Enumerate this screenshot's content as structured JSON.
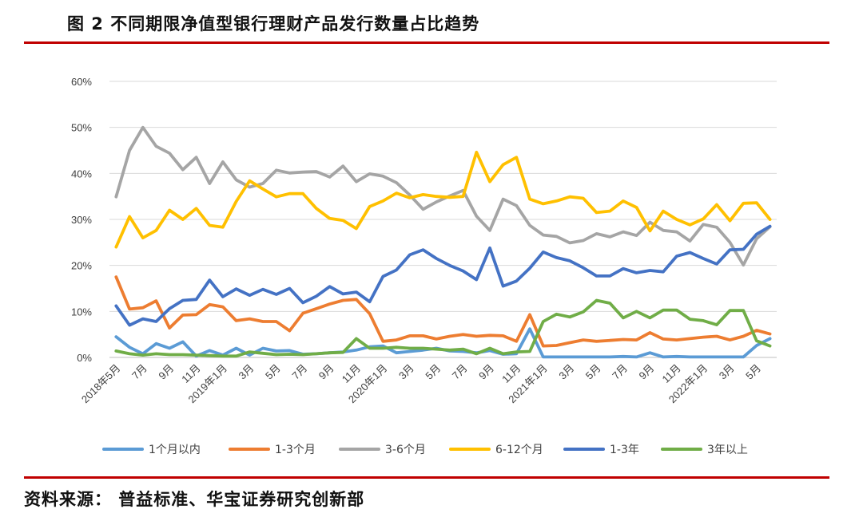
{
  "header": {
    "title": "图 2 不同期限净值型银行理财产品发行数量占比趋势"
  },
  "footer": {
    "source": "资料来源：  普益标准、华宝证券研究创新部"
  },
  "chart_data": {
    "type": "line",
    "title": "",
    "xlabel": "",
    "ylabel": "",
    "y_unit": "%",
    "ylim": [
      0,
      60
    ],
    "y_ticks": [
      "0%",
      "10%",
      "20%",
      "30%",
      "40%",
      "50%",
      "60%"
    ],
    "grid": "horizontal",
    "legend_position": "bottom",
    "x": [
      "2018-05",
      "2018-06",
      "2018-07",
      "2018-08",
      "2018-09",
      "2018-10",
      "2018-11",
      "2018-12",
      "2019-01",
      "2019-02",
      "2019-03",
      "2019-04",
      "2019-05",
      "2019-06",
      "2019-07",
      "2019-08",
      "2019-09",
      "2019-10",
      "2019-11",
      "2019-12",
      "2020-01",
      "2020-02",
      "2020-03",
      "2020-04",
      "2020-05",
      "2020-06",
      "2020-07",
      "2020-08",
      "2020-09",
      "2020-10",
      "2020-11",
      "2020-12",
      "2021-01",
      "2021-02",
      "2021-03",
      "2021-04",
      "2021-05",
      "2021-06",
      "2021-07",
      "2021-08",
      "2021-09",
      "2021-10",
      "2021-11",
      "2021-12",
      "2022-01",
      "2022-02",
      "2022-03",
      "2022-04",
      "2022-05",
      "2022-06"
    ],
    "x_tick_labels": [
      "2018年5月",
      "7月",
      "9月",
      "11月",
      "2019年1月",
      "3月",
      "5月",
      "7月",
      "9月",
      "11月",
      "2020年1月",
      "3月",
      "5月",
      "7月",
      "9月",
      "11月",
      "2021年1月",
      "3月",
      "5月",
      "7月",
      "9月",
      "11月",
      "2022年1月",
      "3月",
      "5月"
    ],
    "series": [
      {
        "name": "1个月以内",
        "color": "#5b9bd5",
        "values": [
          4.5,
          2.2,
          0.8,
          3.0,
          2.0,
          3.4,
          0.3,
          1.5,
          0.5,
          2.0,
          0.5,
          2.0,
          1.4,
          1.5,
          0.7,
          0.8,
          1.0,
          1.2,
          1.6,
          2.3,
          2.5,
          1.0,
          1.3,
          1.6,
          2.0,
          1.4,
          1.3,
          1.0,
          1.5,
          0.7,
          0.8,
          6.2,
          0.1,
          0.1,
          0.1,
          0.1,
          0.1,
          0.1,
          0.2,
          0.1,
          1.0,
          0.1,
          0.2,
          0.1,
          0.1,
          0.1,
          0.1,
          0.1,
          2.6,
          4.1
        ]
      },
      {
        "name": "1-3个月",
        "color": "#ed7d31",
        "values": [
          17.5,
          10.5,
          10.8,
          12.3,
          6.4,
          9.2,
          9.3,
          11.5,
          11.0,
          8.0,
          8.4,
          7.8,
          7.8,
          5.8,
          9.6,
          10.6,
          11.6,
          12.4,
          12.6,
          9.5,
          3.5,
          3.8,
          4.7,
          4.7,
          4.0,
          4.6,
          5.0,
          4.6,
          4.8,
          4.7,
          3.5,
          9.3,
          2.5,
          2.6,
          3.2,
          3.8,
          3.5,
          3.7,
          3.9,
          3.8,
          5.4,
          4.0,
          3.8,
          4.1,
          4.4,
          4.6,
          3.8,
          4.6,
          5.9,
          5.1
        ]
      },
      {
        "name": "3-6个月",
        "color": "#a5a5a5",
        "values": [
          34.9,
          45.0,
          50.0,
          45.9,
          44.4,
          40.8,
          43.5,
          37.8,
          42.5,
          38.6,
          37.0,
          37.8,
          40.7,
          40.1,
          40.3,
          40.4,
          39.2,
          41.6,
          38.2,
          39.9,
          39.4,
          38.0,
          35.3,
          32.2,
          33.8,
          35.1,
          36.3,
          30.7,
          27.6,
          34.4,
          33.0,
          28.7,
          26.6,
          26.3,
          24.9,
          25.4,
          26.9,
          26.2,
          27.3,
          26.5,
          29.4,
          27.6,
          27.3,
          25.3,
          28.9,
          28.3,
          25.0,
          20.1,
          25.8,
          28.4
        ]
      },
      {
        "name": "6-12个月",
        "color": "#ffc000",
        "values": [
          24.0,
          30.6,
          26.0,
          27.6,
          32.0,
          30.0,
          32.4,
          28.7,
          28.3,
          33.9,
          38.4,
          36.6,
          34.9,
          35.6,
          35.6,
          32.4,
          30.2,
          29.8,
          28.0,
          32.8,
          34.0,
          35.7,
          34.7,
          35.4,
          35.0,
          34.8,
          35.0,
          44.6,
          38.2,
          41.9,
          43.5,
          34.4,
          33.4,
          34.0,
          34.9,
          34.6,
          31.5,
          31.8,
          34.0,
          32.6,
          27.5,
          31.8,
          30.0,
          28.8,
          30.1,
          33.2,
          29.7,
          33.5,
          33.6,
          30.0
        ]
      },
      {
        "name": "1-3年",
        "color": "#4472c4",
        "values": [
          11.2,
          7.0,
          8.4,
          7.8,
          10.6,
          12.4,
          12.6,
          16.8,
          13.2,
          14.9,
          13.5,
          14.8,
          13.7,
          15.0,
          11.9,
          13.3,
          15.4,
          13.8,
          14.2,
          12.1,
          17.6,
          19.0,
          22.3,
          23.4,
          21.5,
          20.0,
          18.8,
          16.9,
          23.8,
          15.5,
          16.6,
          19.4,
          22.9,
          21.7,
          21.0,
          19.5,
          17.7,
          17.7,
          19.3,
          18.4,
          18.9,
          18.6,
          22.0,
          22.8,
          21.5,
          20.3,
          23.4,
          23.5,
          26.8,
          28.5
        ]
      },
      {
        "name": "3年以上",
        "color": "#70ad47",
        "values": [
          1.4,
          0.8,
          0.5,
          0.8,
          0.6,
          0.6,
          0.5,
          0.4,
          0.3,
          0.3,
          1.2,
          0.9,
          0.6,
          0.7,
          0.6,
          0.8,
          1.0,
          1.1,
          4.1,
          2.0,
          2.0,
          2.2,
          2.0,
          2.0,
          1.8,
          1.6,
          1.8,
          0.8,
          2.0,
          0.8,
          1.2,
          1.3,
          7.8,
          9.4,
          8.8,
          9.9,
          12.4,
          11.8,
          8.6,
          10.0,
          8.6,
          10.3,
          10.3,
          8.3,
          8.0,
          7.1,
          10.2,
          10.2,
          3.6,
          2.5
        ]
      }
    ]
  }
}
